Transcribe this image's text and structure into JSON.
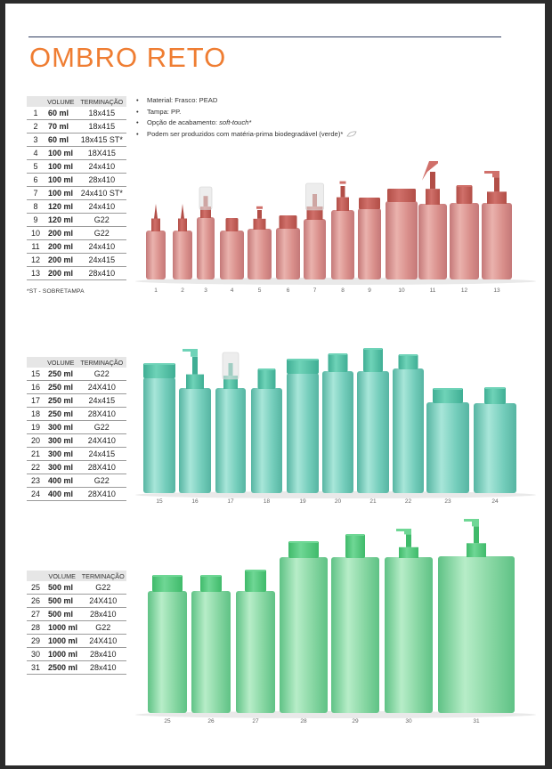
{
  "title": "OMBRO RETO",
  "headers": {
    "num": "",
    "volume": "VOLUME",
    "termination": "TERMINAÇÃO"
  },
  "bullets": [
    "Material: Frasco: PEAD",
    "Tampa: PP.",
    "Opção de acabamento: soft-touch*",
    "Podem ser produzidos com matéria-prima biodegradável (verde)*"
  ],
  "note": "*ST - SOBRETAMPA",
  "colors": {
    "title": "#ef7d32",
    "rule": "#2d3a5e",
    "pink": "#d98a8a",
    "teal": "#6fcbb8",
    "green": "#7fd6a0"
  },
  "table1": [
    {
      "n": "1",
      "v": "60 ml",
      "t": "18x415"
    },
    {
      "n": "2",
      "v": "70 ml",
      "t": "18x415"
    },
    {
      "n": "3",
      "v": "60 ml",
      "t": "18x415 ST*"
    },
    {
      "n": "4",
      "v": "100 ml",
      "t": "18X415"
    },
    {
      "n": "5",
      "v": "100 ml",
      "t": "24x410"
    },
    {
      "n": "6",
      "v": "100 ml",
      "t": "28x410"
    },
    {
      "n": "7",
      "v": "100 ml",
      "t": "24x410 ST*"
    },
    {
      "n": "8",
      "v": "120 ml",
      "t": "24x410"
    },
    {
      "n": "9",
      "v": "120 ml",
      "t": "G22"
    },
    {
      "n": "10",
      "v": "200 ml",
      "t": "G22"
    },
    {
      "n": "11",
      "v": "200 ml",
      "t": "24x410"
    },
    {
      "n": "12",
      "v": "200 ml",
      "t": "24x415"
    },
    {
      "n": "13",
      "v": "200 ml",
      "t": "28x410"
    }
  ],
  "table2": [
    {
      "n": "15",
      "v": "250 ml",
      "t": "G22"
    },
    {
      "n": "16",
      "v": "250 ml",
      "t": "24X410"
    },
    {
      "n": "17",
      "v": "250 ml",
      "t": "24x415"
    },
    {
      "n": "18",
      "v": "250 ml",
      "t": "28X410"
    },
    {
      "n": "19",
      "v": "300 ml",
      "t": "G22"
    },
    {
      "n": "20",
      "v": "300 ml",
      "t": "24X410"
    },
    {
      "n": "21",
      "v": "300 ml",
      "t": "24x415"
    },
    {
      "n": "22",
      "v": "300 ml",
      "t": "28X410"
    },
    {
      "n": "23",
      "v": "400 ml",
      "t": "G22"
    },
    {
      "n": "24",
      "v": "400 ml",
      "t": "28X410"
    }
  ],
  "table3": [
    {
      "n": "25",
      "v": "500 ml",
      "t": "G22"
    },
    {
      "n": "26",
      "v": "500 ml",
      "t": "24X410"
    },
    {
      "n": "27",
      "v": "500 ml",
      "t": "28x410"
    },
    {
      "n": "28",
      "v": "1000 ml",
      "t": "G22"
    },
    {
      "n": "29",
      "v": "1000 ml",
      "t": "24X410"
    },
    {
      "n": "30",
      "v": "1000 ml",
      "t": "28x410"
    },
    {
      "n": "31",
      "v": "2500 ml",
      "t": "28x410"
    }
  ],
  "labels1": [
    "1",
    "2",
    "3",
    "4",
    "5",
    "6",
    "7",
    "8",
    "9",
    "10",
    "11",
    "12",
    "13"
  ],
  "labels2": [
    "15",
    "16",
    "17",
    "18",
    "19",
    "20",
    "21",
    "22",
    "23",
    "24"
  ],
  "labels3": [
    "25",
    "26",
    "27",
    "28",
    "29",
    "30",
    "31"
  ]
}
